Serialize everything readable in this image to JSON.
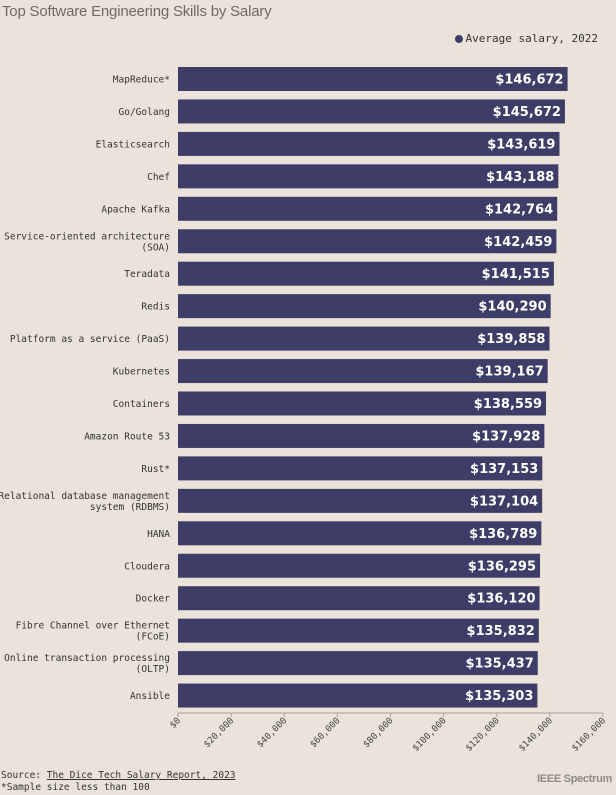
{
  "title": "Top Software Engineering Skills by Salary",
  "legend_label": "Average salary, 2022",
  "colors": {
    "bar": "#3d3d68",
    "background": "#ebe3d9",
    "gridline": "#a8a29c"
  },
  "chart_data": {
    "type": "bar",
    "orientation": "horizontal",
    "title": "Top Software Engineering Skills by Salary",
    "categories": [
      "MapReduce*",
      "Go/Golang",
      "Elasticsearch",
      "Chef",
      "Apache Kafka",
      "Service-oriented architecture (SOA)",
      "Teradata",
      "Redis",
      "Platform as a service (PaaS)",
      "Kubernetes",
      "Containers",
      "Amazon Route 53",
      "Rust*",
      "Relational database management system (RDBMS)",
      "HANA",
      "Cloudera",
      "Docker",
      "Fibre Channel over Ethernet (FCoE)",
      "Online transaction processing (OLTP)",
      "Ansible"
    ],
    "category_lines": [
      [
        "MapReduce*"
      ],
      [
        "Go/Golang"
      ],
      [
        "Elasticsearch"
      ],
      [
        "Chef"
      ],
      [
        "Apache Kafka"
      ],
      [
        "Service-oriented architecture",
        "(SOA)"
      ],
      [
        "Teradata"
      ],
      [
        "Redis"
      ],
      [
        "Platform as a service (PaaS)"
      ],
      [
        "Kubernetes"
      ],
      [
        "Containers"
      ],
      [
        "Amazon Route 53"
      ],
      [
        "Rust*"
      ],
      [
        "Relational database management",
        "system (RDBMS)"
      ],
      [
        "HANA"
      ],
      [
        "Cloudera"
      ],
      [
        "Docker"
      ],
      [
        "Fibre Channel over Ethernet",
        "(FCoE)"
      ],
      [
        "Online transaction processing",
        "(OLTP)"
      ],
      [
        "Ansible"
      ]
    ],
    "series": [
      {
        "name": "Average salary, 2022",
        "values": [
          146672,
          145672,
          143619,
          143188,
          142764,
          142459,
          141515,
          140290,
          139858,
          139167,
          138559,
          137928,
          137153,
          137104,
          136789,
          136295,
          136120,
          135832,
          135437,
          135303
        ],
        "labels": [
          "$146,672",
          "$145,672",
          "$143,619",
          "$143,188",
          "$142,764",
          "$142,459",
          "$141,515",
          "$140,290",
          "$139,858",
          "$139,167",
          "$138,559",
          "$137,928",
          "$137,153",
          "$137,104",
          "$136,789",
          "$136,295",
          "$136,120",
          "$135,832",
          "$135,437",
          "$135,303"
        ]
      }
    ],
    "xlim": [
      0,
      160000
    ],
    "xticks": [
      0,
      20000,
      40000,
      60000,
      80000,
      100000,
      120000,
      140000,
      160000
    ],
    "xtick_labels": [
      "$0",
      "$20,000",
      "$40,000",
      "$60,000",
      "$80,000",
      "$100,000",
      "$120,000",
      "$140,000",
      "$160,000"
    ],
    "grid": false,
    "legend_position": "top-right"
  },
  "footer": {
    "source_prefix": "Source: ",
    "source_link": "The Dice Tech Salary Report, 2023",
    "note": "*Sample size less than 100",
    "brand": "IEEE Spectrum"
  }
}
